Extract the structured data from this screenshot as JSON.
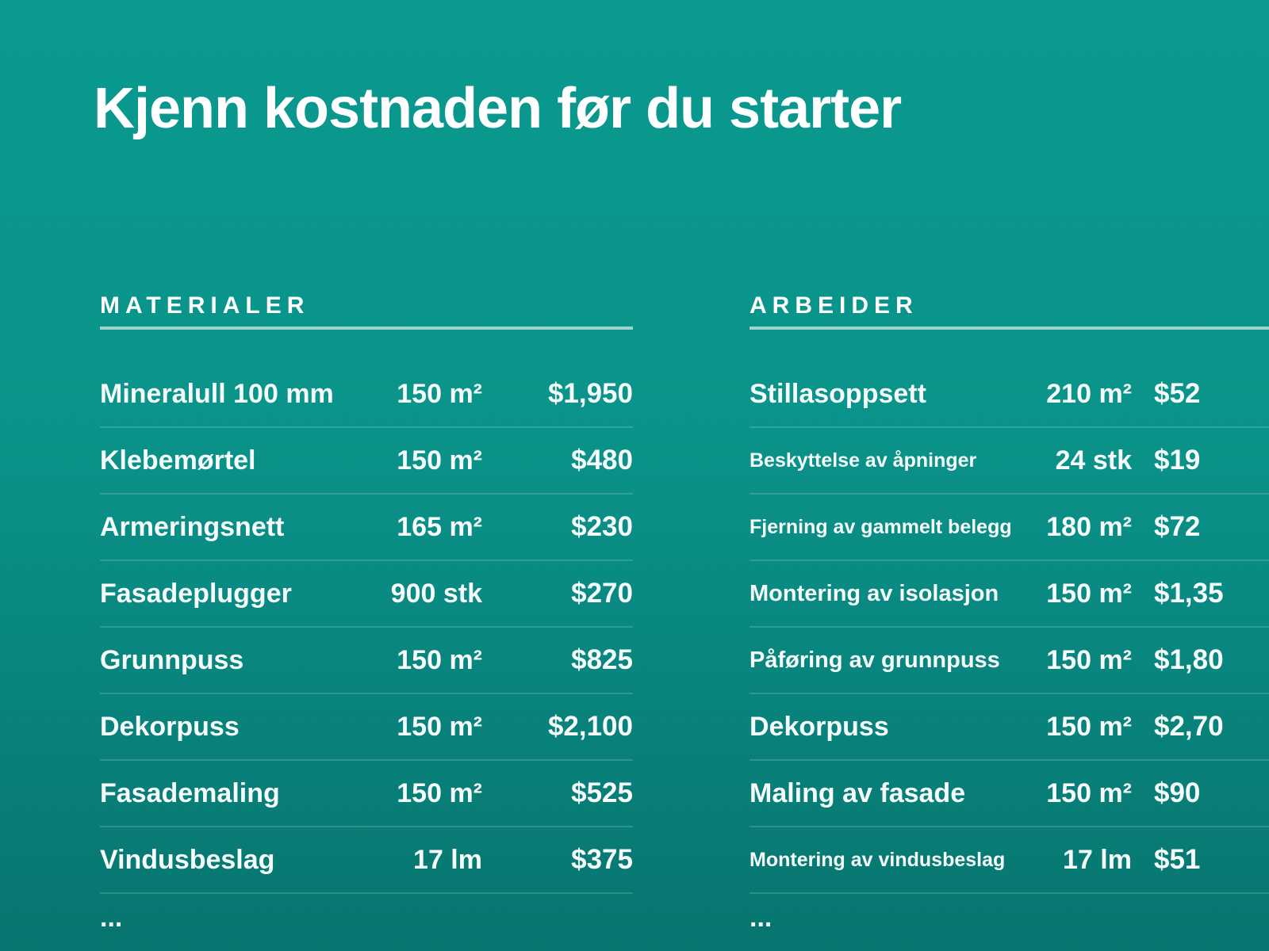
{
  "title": "Kjenn kostnaden før du starter",
  "materials": {
    "heading": "MATERIALER",
    "rows": [
      {
        "name": "Mineralull 100 mm",
        "qty": "150 m²",
        "price": "$1,950"
      },
      {
        "name": "Klebemørtel",
        "qty": "150 m²",
        "price": "$480"
      },
      {
        "name": "Armeringsnett",
        "qty": "165 m²",
        "price": "$230"
      },
      {
        "name": "Fasadeplugger",
        "qty": "900 stk",
        "price": "$270"
      },
      {
        "name": "Grunnpuss",
        "qty": "150 m²",
        "price": "$825"
      },
      {
        "name": "Dekorpuss",
        "qty": "150 m²",
        "price": "$2,100"
      },
      {
        "name": "Fasademaling",
        "qty": "150 m²",
        "price": "$525"
      },
      {
        "name": "Vindusbeslag",
        "qty": "17 lm",
        "price": "$375"
      }
    ],
    "more": "..."
  },
  "work": {
    "heading": "ARBEIDER",
    "rows": [
      {
        "name": "Stillasoppsett",
        "qty": "210 m²",
        "price": "$52",
        "small": false
      },
      {
        "name": "Beskyttelse av åpninger",
        "qty": "24 stk",
        "price": "$19",
        "small": true
      },
      {
        "name": "Fjerning av gammelt belegg",
        "qty": "180 m²",
        "price": "$72",
        "small": true
      },
      {
        "name": "Montering av isolasjon",
        "qty": "150 m²",
        "price": "$1,35",
        "small": false
      },
      {
        "name": "Påføring av grunnpuss",
        "qty": "150 m²",
        "price": "$1,80",
        "small": false
      },
      {
        "name": "Dekorpuss",
        "qty": "150 m²",
        "price": "$2,70",
        "small": false
      },
      {
        "name": "Maling av fasade",
        "qty": "150 m²",
        "price": "$90",
        "small": false
      },
      {
        "name": "Montering av vindusbeslag",
        "qty": "17 lm",
        "price": "$51",
        "small": true
      }
    ],
    "more": "..."
  }
}
